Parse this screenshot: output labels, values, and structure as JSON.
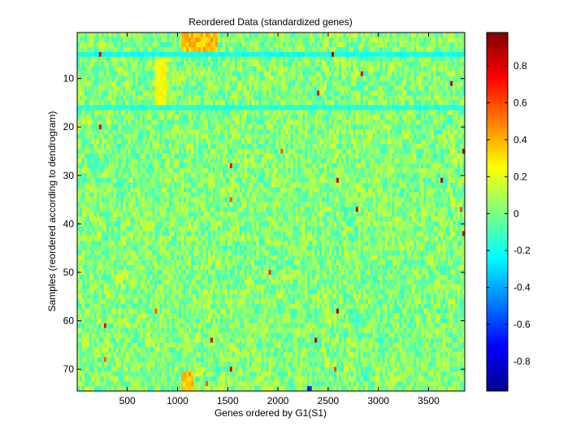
{
  "chart_data": {
    "type": "heatmap",
    "title": "Reordered Data (standardized genes)",
    "xlabel": "Genes ordered by G1(S1)",
    "ylabel": "Samples (reordered according to dendrogram)",
    "xlim": [
      1,
      3860
    ],
    "ylim": [
      0.5,
      74.5
    ],
    "y_direction": "reverse",
    "xticks": [
      500,
      1000,
      1500,
      2000,
      2500,
      3000,
      3500
    ],
    "yticks": [
      10,
      20,
      30,
      40,
      50,
      60,
      70
    ],
    "colorbar": {
      "colormap": "jet",
      "clim": [
        -0.96,
        0.98
      ],
      "ticks": [
        -0.8,
        -0.6,
        -0.4,
        -0.2,
        0,
        0.2,
        0.4,
        0.6,
        0.8
      ]
    },
    "value_summary": {
      "typical_range": [
        -0.2,
        0.2
      ],
      "background": "mostly near 0 (green-cyan)",
      "high_regions": [
        {
          "genes": [
            1050,
            1400
          ],
          "samples": [
            1,
            4
          ],
          "approx_value": 0.4
        },
        {
          "genes": [
            780,
            900
          ],
          "samples": [
            5,
            16
          ],
          "approx_value": 0.25
        },
        {
          "genes": [
            1050,
            1150
          ],
          "samples": [
            71,
            74
          ],
          "approx_value": 0.4
        }
      ],
      "low_regions": [
        {
          "genes": [
            1,
            3860
          ],
          "samples": [
            5,
            5
          ],
          "approx_value": -0.25
        },
        {
          "genes": [
            1,
            3860
          ],
          "samples": [
            16,
            16
          ],
          "approx_value": -0.2
        },
        {
          "genes": [
            2300,
            2330
          ],
          "samples": [
            74,
            74
          ],
          "approx_value": -0.9
        }
      ]
    }
  }
}
